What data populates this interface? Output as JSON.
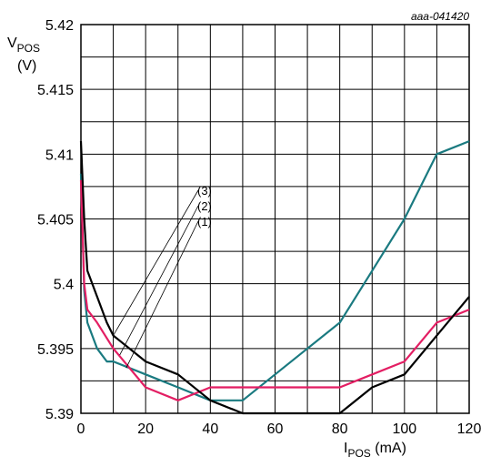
{
  "chart_data": {
    "type": "line",
    "reference": "aaa-041420",
    "ylabel": {
      "main": "V",
      "sub": "POS",
      "unit": "(V)"
    },
    "xlabel": {
      "main": "I",
      "sub": "POS",
      "unit": " (mA)"
    },
    "xlim": [
      0,
      120
    ],
    "ylim": [
      5.39,
      5.42
    ],
    "x_ticks": [
      0,
      20,
      40,
      60,
      80,
      100,
      120
    ],
    "x_tick_labels": [
      "0",
      "20",
      "40",
      "60",
      "80",
      "100",
      "120"
    ],
    "y_ticks": [
      5.39,
      5.395,
      5.4,
      5.405,
      5.41,
      5.415,
      5.42
    ],
    "y_tick_labels": [
      "5.39",
      "5.395",
      "5.4",
      "5.405",
      "5.41",
      "5.415",
      "5.42"
    ],
    "x_grid_step": 10,
    "y_grid_step": 0.0025,
    "grid": true,
    "series": [
      {
        "id": "(1)",
        "color": "#1a7a80",
        "x": [
          0,
          1,
          2,
          5,
          8,
          10,
          20,
          30,
          40,
          50,
          60,
          70,
          80,
          90,
          100,
          110,
          120
        ],
        "y": [
          5.4085,
          5.3995,
          5.397,
          5.395,
          5.394,
          5.394,
          5.393,
          5.392,
          5.391,
          5.391,
          5.393,
          5.395,
          5.397,
          5.401,
          5.405,
          5.41,
          5.411
        ]
      },
      {
        "id": "(2)",
        "color": "#e31e63",
        "x": [
          0,
          1,
          2,
          5,
          10,
          20,
          30,
          40,
          50,
          60,
          70,
          80,
          90,
          100,
          110,
          120
        ],
        "y": [
          5.408,
          5.4,
          5.398,
          5.397,
          5.395,
          5.392,
          5.391,
          5.392,
          5.392,
          5.392,
          5.392,
          5.392,
          5.393,
          5.394,
          5.397,
          5.398
        ]
      },
      {
        "id": "(3)",
        "color": "#000000",
        "x": [
          0,
          1,
          2,
          5,
          8,
          10,
          20,
          30,
          40,
          50,
          60,
          70,
          80,
          90,
          100,
          110,
          120
        ],
        "y": [
          5.411,
          5.405,
          5.401,
          5.399,
          5.397,
          5.396,
          5.394,
          5.393,
          5.391,
          5.39,
          5.39,
          5.39,
          5.39,
          5.392,
          5.393,
          5.396,
          5.399
        ]
      }
    ],
    "callouts": [
      {
        "text": "(3)",
        "series": "(3)",
        "target_x": 10,
        "target_y": 5.396
      },
      {
        "text": "(2)",
        "series": "(2)",
        "target_x": 12,
        "target_y": 5.3945
      },
      {
        "text": "(1)",
        "series": "(1)",
        "target_x": 14,
        "target_y": 5.3935
      }
    ]
  }
}
